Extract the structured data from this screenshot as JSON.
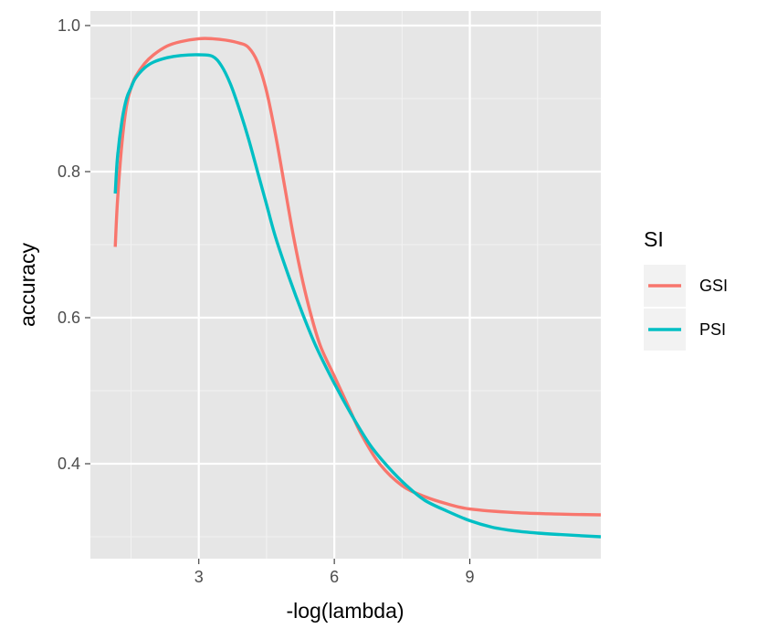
{
  "chart_data": {
    "type": "line",
    "xlabel": "-log(lambda)",
    "ylabel": "accuracy",
    "xlim": [
      0.6,
      11.9
    ],
    "ylim": [
      0.27,
      1.02
    ],
    "x_ticks": [
      3,
      6,
      9
    ],
    "x_tick_labels": [
      "3",
      "6",
      "9"
    ],
    "y_ticks": [
      0.4,
      0.6,
      0.8,
      1.0
    ],
    "y_tick_labels": [
      "0.4",
      "0.6",
      "0.8",
      "1.0"
    ],
    "grid": true,
    "panel_background": "#e6e6e6",
    "legend": {
      "title": "SI",
      "placement": "right"
    },
    "series": [
      {
        "name": "GSI",
        "color": "#f8766d",
        "x": [
          1.15,
          1.2,
          1.3,
          1.4,
          1.5,
          1.6,
          1.8,
          2.0,
          2.3,
          2.6,
          3.0,
          3.3,
          3.6,
          3.9,
          4.1,
          4.3,
          4.5,
          4.7,
          4.9,
          5.1,
          5.3,
          5.5,
          5.7,
          6.0,
          6.3,
          6.6,
          7.0,
          7.5,
          8.0,
          8.5,
          9.0,
          10.0,
          11.0,
          11.9
        ],
        "values": [
          0.697,
          0.76,
          0.84,
          0.89,
          0.915,
          0.93,
          0.948,
          0.96,
          0.972,
          0.978,
          0.982,
          0.982,
          0.98,
          0.976,
          0.97,
          0.95,
          0.91,
          0.85,
          0.78,
          0.71,
          0.65,
          0.6,
          0.56,
          0.52,
          0.48,
          0.44,
          0.4,
          0.37,
          0.355,
          0.345,
          0.338,
          0.333,
          0.331,
          0.33
        ]
      },
      {
        "name": "PSI",
        "color": "#00bfc4",
        "x": [
          1.15,
          1.2,
          1.3,
          1.4,
          1.5,
          1.6,
          1.8,
          2.0,
          2.3,
          2.6,
          3.0,
          3.3,
          3.5,
          3.7,
          3.9,
          4.1,
          4.3,
          4.5,
          4.7,
          5.0,
          5.3,
          5.6,
          6.0,
          6.4,
          6.8,
          7.2,
          7.6,
          8.0,
          8.5,
          9.0,
          9.5,
          10.0,
          10.5,
          11.0,
          11.9
        ],
        "values": [
          0.77,
          0.82,
          0.87,
          0.9,
          0.915,
          0.928,
          0.942,
          0.95,
          0.956,
          0.959,
          0.96,
          0.958,
          0.945,
          0.92,
          0.885,
          0.845,
          0.8,
          0.755,
          0.71,
          0.655,
          0.605,
          0.56,
          0.51,
          0.465,
          0.425,
          0.395,
          0.37,
          0.35,
          0.335,
          0.322,
          0.313,
          0.308,
          0.305,
          0.303,
          0.3
        ]
      }
    ]
  }
}
